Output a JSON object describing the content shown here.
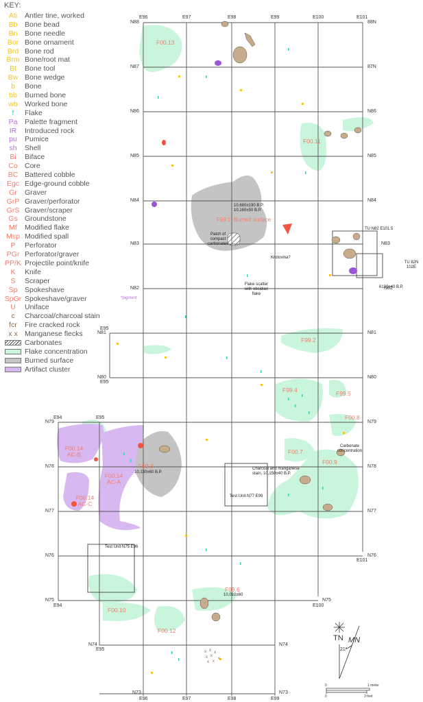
{
  "key": {
    "title": "KEY:",
    "artifact_codes": [
      {
        "code": "Ati",
        "label": "Antler tine, worked",
        "color": "#f5c518"
      },
      {
        "code": "Bb",
        "label": "Bone bead",
        "color": "#f5c518"
      },
      {
        "code": "Bn",
        "label": "Bone needle",
        "color": "#f5c518"
      },
      {
        "code": "Bor",
        "label": "Bone ornament",
        "color": "#f5c518"
      },
      {
        "code": "Brd",
        "label": "Bone rod",
        "color": "#f5c518"
      },
      {
        "code": "Brm",
        "label": "Bone/root mat",
        "color": "#f5c518"
      },
      {
        "code": "Bt",
        "label": "Bone tool",
        "color": "#f5c518"
      },
      {
        "code": "Bw",
        "label": "Bone wedge",
        "color": "#f5c518"
      },
      {
        "code": "b",
        "label": "Bone",
        "color": "#f5c518"
      },
      {
        "code": "bb",
        "label": "Burned bone",
        "color": "#f5c518"
      },
      {
        "code": "wb",
        "label": "Worked bone",
        "color": "#f5c518"
      },
      {
        "code": "f",
        "label": "Flake",
        "color": "#2fd9b0"
      },
      {
        "code": "Pa",
        "label": "Palette fragment",
        "color": "#b46be0"
      },
      {
        "code": "IR",
        "label": "Introduced rock",
        "color": "#b46be0"
      },
      {
        "code": "pu",
        "label": "Pumice",
        "color": "#b46be0"
      },
      {
        "code": "sh",
        "label": "Shell",
        "color": "#b46be0"
      },
      {
        "code": "Bi",
        "label": "Biface",
        "color": "#f47c6a"
      },
      {
        "code": "Co",
        "label": "Core",
        "color": "#f47c6a"
      },
      {
        "code": "BC",
        "label": "Battered cobble",
        "color": "#f47c6a"
      },
      {
        "code": "Egc",
        "label": "Edge-ground cobble",
        "color": "#f47c6a"
      },
      {
        "code": "Gr",
        "label": "Graver",
        "color": "#f47c6a"
      },
      {
        "code": "GrP",
        "label": "Graver/perforator",
        "color": "#f47c6a"
      },
      {
        "code": "GrS",
        "label": "Graver/scraper",
        "color": "#f47c6a"
      },
      {
        "code": "Gs",
        "label": "Groundstone",
        "color": "#f47c6a"
      },
      {
        "code": "Mf",
        "label": "Modified flake",
        "color": "#f47c6a"
      },
      {
        "code": "Msp",
        "label": "Modified spall",
        "color": "#f47c6a"
      },
      {
        "code": "P",
        "label": "Perforator",
        "color": "#f47c6a"
      },
      {
        "code": "PGr",
        "label": "Perforator/graver",
        "color": "#f47c6a"
      },
      {
        "code": "PP/K",
        "label": "Projectile point/knife",
        "color": "#f47c6a"
      },
      {
        "code": "K",
        "label": "Knife",
        "color": "#f47c6a"
      },
      {
        "code": "S",
        "label": "Scraper",
        "color": "#f47c6a"
      },
      {
        "code": "Sp",
        "label": "Spokeshave",
        "color": "#f47c6a"
      },
      {
        "code": "SpGr",
        "label": "Spokeshave/graver",
        "color": "#f47c6a"
      },
      {
        "code": "U",
        "label": "Uniface",
        "color": "#f47c6a"
      },
      {
        "code": "c",
        "label": "Charcoal/charcoal stain",
        "color": "#8b6a4a"
      },
      {
        "code": "fcr",
        "label": "Fire cracked rock",
        "color": "#8b6a4a"
      },
      {
        "code": "x x",
        "label": "Manganese flecks",
        "color": "#8b6a4a"
      }
    ],
    "area_symbols": [
      {
        "label": "Carbonates",
        "style": "hatched"
      },
      {
        "label": "Flake concentration",
        "color": "#c8f5dc"
      },
      {
        "label": "Burned surface",
        "color": "#c4c4c4"
      },
      {
        "label": "Artifact cluster",
        "color": "#d7b8f0"
      }
    ]
  },
  "grid": {
    "easting_labels_top": [
      "E96",
      "E97",
      "E98",
      "E99",
      "E100",
      "E101"
    ],
    "northing_labels_left": [
      "N88",
      "N87",
      "N86",
      "N85",
      "N84",
      "N83",
      "N82",
      "N81",
      "N80",
      "N79",
      "N78",
      "N77",
      "N76",
      "N75",
      "N74",
      "N73"
    ],
    "northing_labels_right": [
      "88N",
      "87N",
      "N86",
      "N85",
      "N84",
      "N83",
      "N82",
      "N81",
      "N80",
      "N79",
      "N78",
      "N77",
      "N76",
      "N75",
      "N74",
      "N73"
    ],
    "easting_labels_bottom": [
      "E96",
      "E97",
      "E98",
      "E99"
    ],
    "other_labels": {
      "e95_n81": "E95",
      "e95_n80": "E95",
      "e94_n79": "E94",
      "e95_n79": "E95",
      "e94_n75": "E94",
      "e95_n74": "E95",
      "e100_n75": "E100",
      "e101_n76": "E101"
    }
  },
  "features": [
    {
      "id": "F00.13",
      "label": "F00.13"
    },
    {
      "id": "F00.11",
      "label": "F00.11"
    },
    {
      "id": "F99.1",
      "label": "F99.1, Burned surface"
    },
    {
      "id": "F99.2",
      "label": "F99.2"
    },
    {
      "id": "F99.4",
      "label": "F99.4"
    },
    {
      "id": "F99.5",
      "label": "F99.5"
    },
    {
      "id": "F00.8",
      "label": "F00.8"
    },
    {
      "id": "F00.7",
      "label": "F00.7"
    },
    {
      "id": "F00.9",
      "label": "F00.9"
    },
    {
      "id": "F99.3",
      "label": "F99.3"
    },
    {
      "id": "F00.14-AC-B",
      "label": "F00.14 AC-B"
    },
    {
      "id": "F00.14-AC-A",
      "label": "F00.14 AC-A"
    },
    {
      "id": "F00.14-AC-C",
      "label": "F00.14 AC-C"
    },
    {
      "id": "F99.6",
      "label": "F99.6"
    },
    {
      "id": "F00.10",
      "label": "F00.10"
    },
    {
      "id": "F00.12",
      "label": "F00.12"
    }
  ],
  "annotations": {
    "dates_f99_1": "10,680±190 B.P.\n10,160±50 B.P.",
    "carbonates_patch": "Patch of compact carbonates",
    "krotovina": "Krotovina?",
    "flake_scatter": "Flake scatter with obsidian flake",
    "pigment": "*pigment",
    "tu_n82": "TU N82  E101.5",
    "tu_82n": "TU 82N 102E",
    "date_6130": "6130±40 B.P.",
    "date_f99_3": "10,130±60 B.P.",
    "charcoal_stain": "Charcoal and manganese stain, 10,150±40 B.P.",
    "test_unit_n77": "Test Unit N77  E99",
    "carbonate_concentration": "Carbonate concentration",
    "test_unit_n75": "Test Unit N75  E96",
    "date_f99_6": "10,010±60"
  },
  "compass": {
    "true_north": "TN",
    "magnetic_north": "MN",
    "declination": "21°"
  },
  "scale": {
    "zero_top": "0",
    "meter_label": "1 meter",
    "zero_bottom": "0",
    "feet_label": "3 feet"
  }
}
